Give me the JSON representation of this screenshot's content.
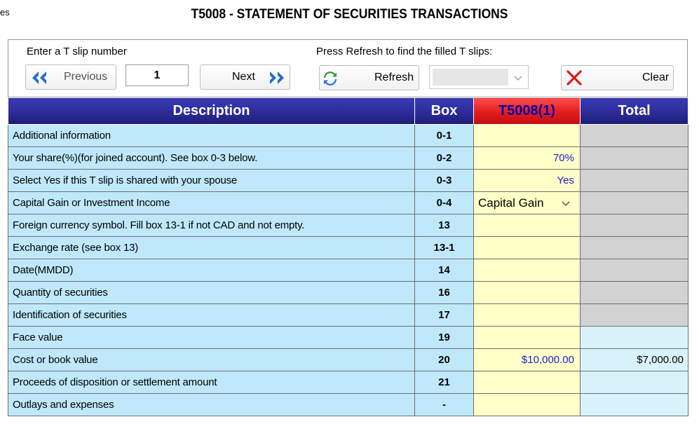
{
  "corner_text": "es",
  "title": "T5008 - STATEMENT OF SECURITIES TRANSACTIONS",
  "toolbar": {
    "enter_label": "Enter a T slip number",
    "refresh_label": "Press Refresh to find the filled T slips:",
    "previous_label": "Previous",
    "tslip_number": "1",
    "next_label": "Next",
    "refresh_button_label": "Refresh",
    "combo_value": "",
    "clear_label": "Clear"
  },
  "table": {
    "headers": {
      "description": "Description",
      "box": "Box",
      "t5008": "T5008(1)",
      "total": "Total"
    },
    "rows": [
      {
        "description": "Additional information",
        "box": "0-1",
        "value": "",
        "total": "",
        "total_style": "gray"
      },
      {
        "description": "Your share(%)(for joined account). See box 0-3 below.",
        "box": "0-2",
        "value": "70%",
        "total": "",
        "total_style": "gray"
      },
      {
        "description": "Select Yes if this T slip is shared with your spouse",
        "box": "0-3",
        "value": "Yes",
        "total": "",
        "total_style": "gray"
      },
      {
        "description": "Capital Gain or Investment Income",
        "box": "0-4",
        "value": "Capital Gain",
        "total": "",
        "total_style": "gray",
        "is_select": true
      },
      {
        "description": "Foreign currency symbol. Fill box 13-1 if not CAD and not empty.",
        "box": "13",
        "value": "",
        "total": "",
        "total_style": "gray"
      },
      {
        "description": "Exchange rate (see box 13)",
        "box": "13-1",
        "value": "",
        "total": "",
        "total_style": "gray"
      },
      {
        "description": "Date(MMDD)",
        "box": "14",
        "value": "",
        "total": "",
        "total_style": "gray"
      },
      {
        "description": "Quantity of securities",
        "box": "16",
        "value": "",
        "total": "",
        "total_style": "gray"
      },
      {
        "description": "Identification of securities",
        "box": "17",
        "value": "",
        "total": "",
        "total_style": "gray"
      },
      {
        "description": "Face value",
        "box": "19",
        "value": "",
        "total": "",
        "total_style": "light"
      },
      {
        "description": "Cost or book value",
        "box": "20",
        "value": "$10,000.00",
        "total": "$7,000.00",
        "total_style": "light"
      },
      {
        "description": "Proceeds of disposition or settlement amount",
        "box": "21",
        "value": "",
        "total": "",
        "total_style": "light"
      },
      {
        "description": "Outlays and expenses",
        "box": "-",
        "value": "",
        "total": "",
        "total_style": "light"
      }
    ]
  }
}
